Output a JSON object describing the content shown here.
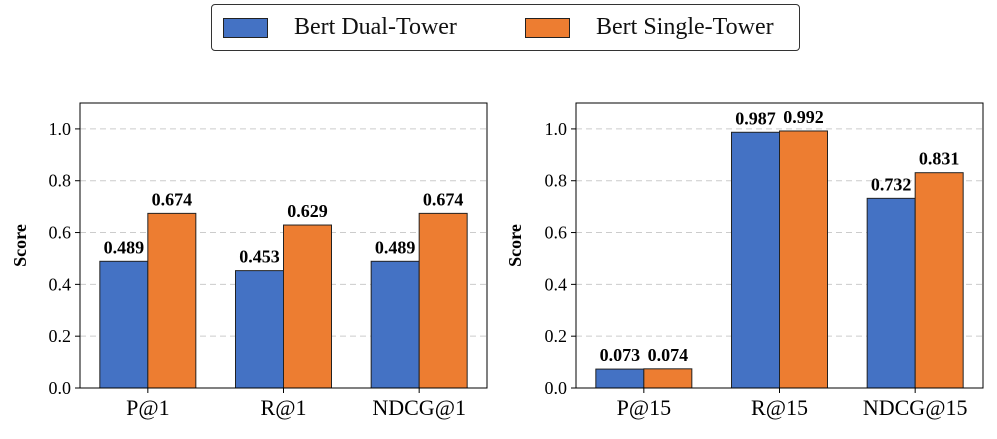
{
  "legend": {
    "series_1": "Bert Dual-Tower",
    "series_2": "Bert Single-Tower"
  },
  "colors": {
    "series_1": "#4472C4",
    "series_2": "#ED7D31"
  },
  "chart_data": [
    {
      "type": "bar",
      "title": "",
      "xlabel": "",
      "ylabel": "Score",
      "ylim": [
        0,
        1.1
      ],
      "yticks": [
        "0.0",
        "0.2",
        "0.4",
        "0.6",
        "0.8",
        "1.0"
      ],
      "grid": "horizontal dashed",
      "categories": [
        "P@1",
        "R@1",
        "NDCG@1"
      ],
      "series": [
        {
          "name": "Bert Dual-Tower",
          "values": [
            0.489,
            0.453,
            0.489
          ],
          "labels": [
            "0.489",
            "0.453",
            "0.489"
          ]
        },
        {
          "name": "Bert Single-Tower",
          "values": [
            0.674,
            0.629,
            0.674
          ],
          "labels": [
            "0.674",
            "0.629",
            "0.674"
          ]
        }
      ]
    },
    {
      "type": "bar",
      "title": "",
      "xlabel": "",
      "ylabel": "Score",
      "ylim": [
        0,
        1.1
      ],
      "yticks": [
        "0.0",
        "0.2",
        "0.4",
        "0.6",
        "0.8",
        "1.0"
      ],
      "grid": "horizontal dashed",
      "categories": [
        "P@15",
        "R@15",
        "NDCG@15"
      ],
      "series": [
        {
          "name": "Bert Dual-Tower",
          "values": [
            0.073,
            0.987,
            0.732
          ],
          "labels": [
            "0.073",
            "0.987",
            "0.732"
          ]
        },
        {
          "name": "Bert Single-Tower",
          "values": [
            0.074,
            0.992,
            0.831
          ],
          "labels": [
            "0.074",
            "0.992",
            "0.831"
          ]
        }
      ]
    }
  ]
}
